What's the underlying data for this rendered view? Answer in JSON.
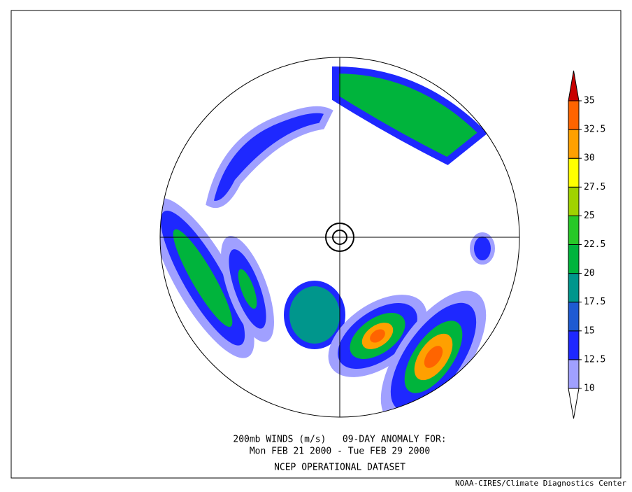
{
  "title_lines": [
    "200mb WINDS (m/s)   09-DAY ANOMALY FOR:",
    "Mon FEB 21 2000 - Tue FEB 29 2000",
    "NCEP OPERATIONAL DATASET"
  ],
  "credit": "NOAA-CIRES/Climate Diagnostics Center",
  "colorbar": {
    "ticks": [
      10,
      12.5,
      15,
      17.5,
      20,
      22.5,
      25,
      27.5,
      30,
      32.5,
      35
    ],
    "colors": [
      "#ffffff",
      "#a0a0ff",
      "#1e28ff",
      "#1e5ad2",
      "#00968c",
      "#00b43c",
      "#28c828",
      "#a0d200",
      "#ffff00",
      "#ffa000",
      "#ff6400",
      "#c80000"
    ]
  }
}
